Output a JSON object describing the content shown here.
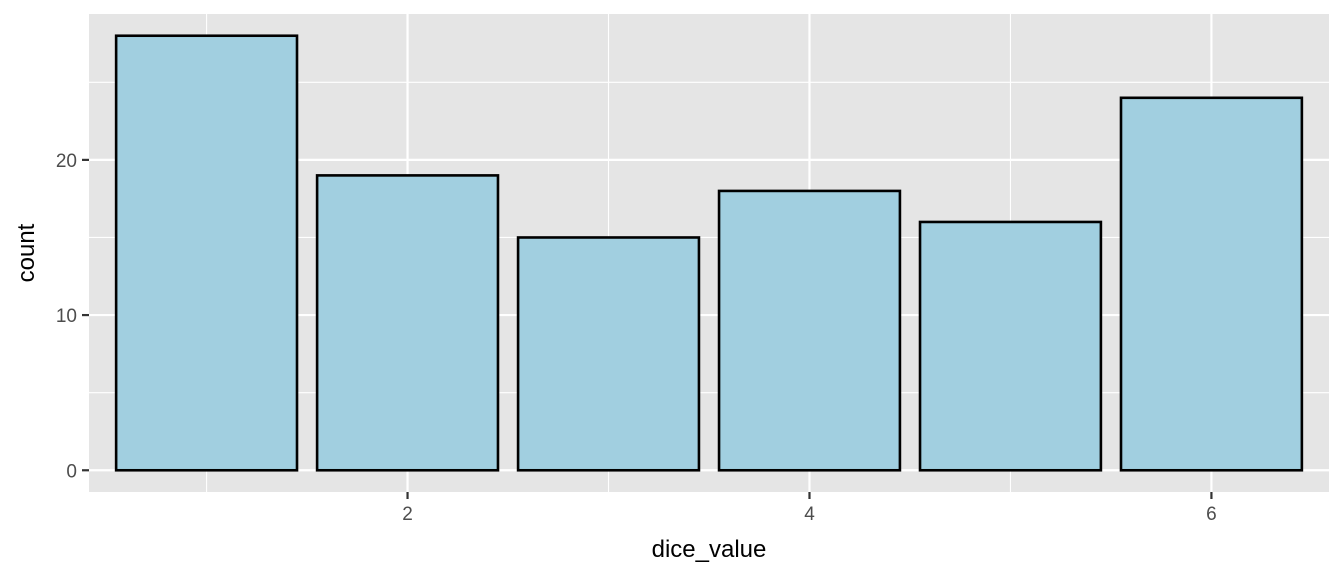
{
  "chart_data": {
    "type": "bar",
    "x": [
      1,
      2,
      3,
      4,
      5,
      6
    ],
    "values": [
      28,
      19,
      15,
      18,
      16,
      24
    ],
    "xlabel": "dice_value",
    "ylabel": "count",
    "xlim": [
      0.415,
      6.585
    ],
    "ylim": [
      -1.4,
      29.4
    ],
    "x_ticks": [
      2,
      4,
      6
    ],
    "x_tick_labels": [
      "2",
      "4",
      "6"
    ],
    "y_ticks": [
      0,
      10,
      20
    ],
    "y_tick_labels": [
      "0",
      "10",
      "20"
    ],
    "x_minor_breaks": [
      1,
      3,
      5
    ],
    "y_minor_breaks": [
      5,
      15,
      25
    ],
    "bar_width": 0.9,
    "grid": true,
    "legend": "none",
    "colors": {
      "bar_fill": "#a1cfe0",
      "bar_outline": "#000000",
      "panel_background": "#e5e5e5",
      "grid": "#ffffff"
    }
  }
}
